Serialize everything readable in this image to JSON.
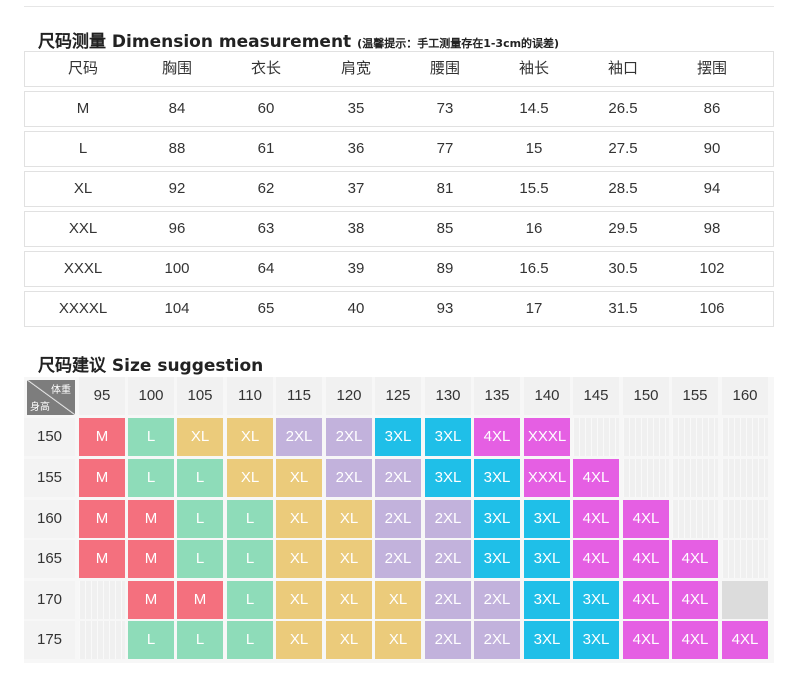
{
  "dimension": {
    "title": "尺码测量 Dimension measurement",
    "note": "(温馨提示：手工测量存在1-3cm的误差)",
    "headers": [
      "尺码",
      "胸围",
      "衣长",
      "肩宽",
      "腰围",
      "袖长",
      "袖口",
      "摆围"
    ],
    "rows": [
      [
        "M",
        "84",
        "60",
        "35",
        "73",
        "14.5",
        "26.5",
        "86"
      ],
      [
        "L",
        "88",
        "61",
        "36",
        "77",
        "15",
        "27.5",
        "90"
      ],
      [
        "XL",
        "92",
        "62",
        "37",
        "81",
        "15.5",
        "28.5",
        "94"
      ],
      [
        "XXL",
        "96",
        "63",
        "38",
        "85",
        "16",
        "29.5",
        "98"
      ],
      [
        "XXXL",
        "100",
        "64",
        "39",
        "89",
        "16.5",
        "30.5",
        "102"
      ],
      [
        "XXXXL",
        "104",
        "65",
        "40",
        "93",
        "17",
        "31.5",
        "106"
      ]
    ]
  },
  "suggestion": {
    "title": "尺码建议 Size suggestion",
    "corner": {
      "weight": "体重",
      "height": "身高"
    },
    "weights": [
      "95",
      "100",
      "105",
      "110",
      "115",
      "120",
      "125",
      "130",
      "135",
      "140",
      "145",
      "150",
      "155",
      "160"
    ],
    "heights": [
      "150",
      "155",
      "160",
      "165",
      "170",
      "175"
    ],
    "grid": [
      [
        "M",
        "L",
        "XL",
        "XL",
        "2XL",
        "2XL",
        "3XL",
        "3XL",
        "4XL",
        "XXXL",
        "",
        "",
        "",
        ""
      ],
      [
        "M",
        "L",
        "L",
        "XL",
        "XL",
        "2XL",
        "2XL",
        "3XL",
        "3XL",
        "XXXL",
        "4XL",
        "",
        "",
        ""
      ],
      [
        "M",
        "M",
        "L",
        "L",
        "XL",
        "XL",
        "2XL",
        "2XL",
        "3XL",
        "3XL",
        "4XL",
        "4XL",
        "",
        ""
      ],
      [
        "M",
        "M",
        "L",
        "L",
        "XL",
        "XL",
        "2XL",
        "2XL",
        "3XL",
        "3XL",
        "4XL",
        "4XL",
        "4XL",
        ""
      ],
      [
        "",
        "M",
        "M",
        "L",
        "XL",
        "XL",
        "XL",
        "2XL",
        "2XL",
        "3XL",
        "3XL",
        "4XL",
        "4XL",
        "-"
      ],
      [
        "",
        "L",
        "L",
        "L",
        "XL",
        "XL",
        "XL",
        "2XL",
        "2XL",
        "3XL",
        "3XL",
        "4XL",
        "4XL",
        "4XL"
      ]
    ],
    "colors": {
      "M": "#f4707e",
      "L": "#8edcb9",
      "XL": "#ebcb7b",
      "2XL": "#c2b2dc",
      "3XL": "#1fbfe8",
      "4XL": "#e55fe3",
      "XXXL": "#e55fe3"
    }
  }
}
